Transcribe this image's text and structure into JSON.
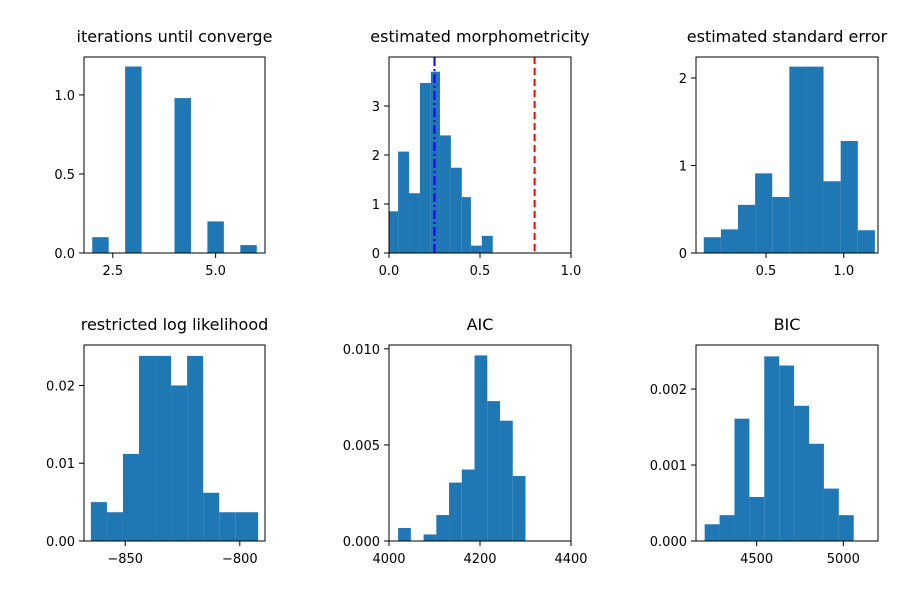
{
  "chart_data": [
    {
      "type": "histogram",
      "title": "iterations until converge",
      "xlim": [
        1.8,
        6.2
      ],
      "ylim": [
        0,
        1.24
      ],
      "xticks": [
        2.5,
        5.0
      ],
      "xtick_labels": [
        "2.5",
        "5.0"
      ],
      "yticks": [
        0.0,
        0.5,
        1.0
      ],
      "ytick_labels": [
        "0.0",
        "0.5",
        "1.0"
      ],
      "bins": [
        {
          "x0": 2.0,
          "x1": 2.4,
          "y": 0.1
        },
        {
          "x0": 2.8,
          "x1": 3.2,
          "y": 1.18
        },
        {
          "x0": 4.0,
          "x1": 4.4,
          "y": 0.98
        },
        {
          "x0": 4.8,
          "x1": 5.2,
          "y": 0.2
        },
        {
          "x0": 5.6,
          "x1": 6.0,
          "y": 0.05
        }
      ],
      "color": "#1f77b4"
    },
    {
      "type": "histogram",
      "title": "estimated morphometricity",
      "xlim": [
        0.0,
        1.0
      ],
      "ylim": [
        0,
        4.0
      ],
      "xticks": [
        0.0,
        0.5,
        1.0
      ],
      "xtick_labels": [
        "0.0",
        "0.5",
        "1.0"
      ],
      "yticks": [
        0,
        1,
        2,
        3
      ],
      "ytick_labels": [
        "0",
        "1",
        "2",
        "3"
      ],
      "bins": [
        {
          "x0": 0.0,
          "x1": 0.05,
          "y": 0.85
        },
        {
          "x0": 0.05,
          "x1": 0.11,
          "y": 2.07
        },
        {
          "x0": 0.11,
          "x1": 0.17,
          "y": 1.22
        },
        {
          "x0": 0.17,
          "x1": 0.23,
          "y": 3.47
        },
        {
          "x0": 0.23,
          "x1": 0.28,
          "y": 3.7
        },
        {
          "x0": 0.28,
          "x1": 0.34,
          "y": 2.4
        },
        {
          "x0": 0.34,
          "x1": 0.4,
          "y": 1.74
        },
        {
          "x0": 0.4,
          "x1": 0.45,
          "y": 1.14
        },
        {
          "x0": 0.45,
          "x1": 0.51,
          "y": 0.15
        },
        {
          "x0": 0.51,
          "x1": 0.57,
          "y": 0.35
        }
      ],
      "vlines": [
        {
          "x": 0.25,
          "color": "#0000ff",
          "style": "dashdot"
        },
        {
          "x": 0.8,
          "color": "#ff0000",
          "style": "dashed"
        }
      ],
      "color": "#1f77b4"
    },
    {
      "type": "histogram",
      "title": "estimated standard error",
      "xlim": [
        0.05,
        1.22
      ],
      "ylim": [
        0,
        2.24
      ],
      "xticks": [
        0.5,
        1.0
      ],
      "xtick_labels": [
        "0.5",
        "1.0"
      ],
      "yticks": [
        0,
        1,
        2
      ],
      "ytick_labels": [
        "0",
        "1",
        "2"
      ],
      "bins": [
        {
          "x0": 0.1,
          "x1": 0.21,
          "y": 0.18
        },
        {
          "x0": 0.21,
          "x1": 0.32,
          "y": 0.27
        },
        {
          "x0": 0.32,
          "x1": 0.43,
          "y": 0.55
        },
        {
          "x0": 0.43,
          "x1": 0.54,
          "y": 0.91
        },
        {
          "x0": 0.54,
          "x1": 0.65,
          "y": 0.64
        },
        {
          "x0": 0.65,
          "x1": 0.76,
          "y": 2.13
        },
        {
          "x0": 0.76,
          "x1": 0.87,
          "y": 2.13
        },
        {
          "x0": 0.87,
          "x1": 0.98,
          "y": 0.82
        },
        {
          "x0": 0.98,
          "x1": 1.09,
          "y": 1.28
        },
        {
          "x0": 1.09,
          "x1": 1.2,
          "y": 0.26
        }
      ],
      "color": "#1f77b4"
    },
    {
      "type": "histogram",
      "title": "restricted log likelihood",
      "xlim": [
        -868,
        -789
      ],
      "ylim": [
        0,
        0.0252
      ],
      "xticks": [
        -850,
        -800
      ],
      "xtick_labels": [
        "−850",
        "−800"
      ],
      "yticks": [
        0.0,
        0.01,
        0.02
      ],
      "ytick_labels": [
        "0.00",
        "0.01",
        "0.02"
      ],
      "bins": [
        {
          "x0": -865,
          "x1": -858,
          "y": 0.005
        },
        {
          "x0": -858,
          "x1": -851,
          "y": 0.0037
        },
        {
          "x0": -851,
          "x1": -844,
          "y": 0.0112
        },
        {
          "x0": -844,
          "x1": -837,
          "y": 0.0238
        },
        {
          "x0": -837,
          "x1": -830,
          "y": 0.0238
        },
        {
          "x0": -830,
          "x1": -823,
          "y": 0.02
        },
        {
          "x0": -823,
          "x1": -816,
          "y": 0.0238
        },
        {
          "x0": -816,
          "x1": -809,
          "y": 0.0062
        },
        {
          "x0": -809,
          "x1": -802,
          "y": 0.0037
        },
        {
          "x0": -802,
          "x1": -792,
          "y": 0.0037
        }
      ],
      "color": "#1f77b4"
    },
    {
      "type": "histogram",
      "title": "AIC",
      "xlim": [
        4000,
        4400
      ],
      "ylim": [
        0,
        0.0102
      ],
      "xticks": [
        4000,
        4200,
        4400
      ],
      "xtick_labels": [
        "4000",
        "4200",
        "4400"
      ],
      "yticks": [
        0.0,
        0.005,
        0.01
      ],
      "ytick_labels": [
        "0.000",
        "0.005",
        "0.010"
      ],
      "bins": [
        {
          "x0": 4020,
          "x1": 4048,
          "y": 0.00068
        },
        {
          "x0": 4048,
          "x1": 4076,
          "y": 0.0
        },
        {
          "x0": 4076,
          "x1": 4104,
          "y": 0.00034
        },
        {
          "x0": 4104,
          "x1": 4132,
          "y": 0.00135
        },
        {
          "x0": 4132,
          "x1": 4160,
          "y": 0.00304
        },
        {
          "x0": 4160,
          "x1": 4188,
          "y": 0.00372
        },
        {
          "x0": 4188,
          "x1": 4216,
          "y": 0.00966
        },
        {
          "x0": 4216,
          "x1": 4244,
          "y": 0.00728
        },
        {
          "x0": 4244,
          "x1": 4272,
          "y": 0.00626
        },
        {
          "x0": 4272,
          "x1": 4300,
          "y": 0.00338
        }
      ],
      "color": "#1f77b4"
    },
    {
      "type": "histogram",
      "title": "BIC",
      "xlim": [
        4150,
        5200
      ],
      "ylim": [
        0,
        0.00258
      ],
      "xticks": [
        4500,
        5000
      ],
      "xtick_labels": [
        "4500",
        "5000"
      ],
      "yticks": [
        0.0,
        0.001,
        0.002
      ],
      "ytick_labels": [
        "0.000",
        "0.001",
        "0.002"
      ],
      "bins": [
        {
          "x0": 4200,
          "x1": 4286,
          "y": 0.00022
        },
        {
          "x0": 4286,
          "x1": 4372,
          "y": 0.00034
        },
        {
          "x0": 4372,
          "x1": 4458,
          "y": 0.00161
        },
        {
          "x0": 4458,
          "x1": 4544,
          "y": 0.00058
        },
        {
          "x0": 4544,
          "x1": 4630,
          "y": 0.00243
        },
        {
          "x0": 4630,
          "x1": 4716,
          "y": 0.00231
        },
        {
          "x0": 4716,
          "x1": 4802,
          "y": 0.00178
        },
        {
          "x0": 4802,
          "x1": 4888,
          "y": 0.00128
        },
        {
          "x0": 4888,
          "x1": 4974,
          "y": 0.00069
        },
        {
          "x0": 4974,
          "x1": 5060,
          "y": 0.00034
        }
      ],
      "color": "#1f77b4"
    }
  ]
}
